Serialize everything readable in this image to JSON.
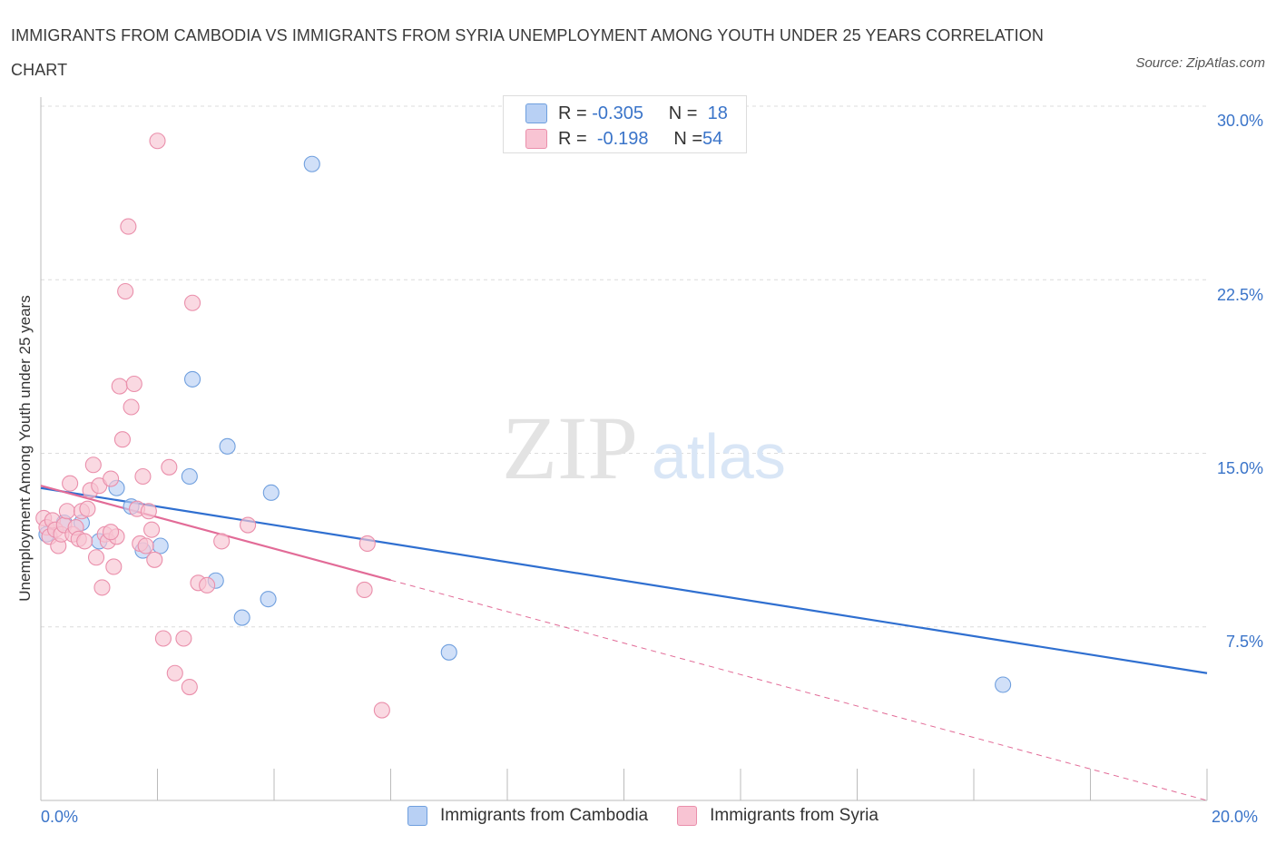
{
  "title": "IMMIGRANTS FROM CAMBODIA VS IMMIGRANTS FROM SYRIA UNEMPLOYMENT AMONG YOUTH UNDER 25 YEARS CORRELATION CHART",
  "source": "Source: ZipAtlas.com",
  "watermark": {
    "zip": "ZIP",
    "atlas": "atlas"
  },
  "colors": {
    "blue_fill": "#b8d0f4",
    "blue_stroke": "#6f9fde",
    "blue_line": "#2f6fd0",
    "pink_fill": "#f8c4d3",
    "pink_stroke": "#ea8fab",
    "pink_line": "#e26b97",
    "tick_text": "#3a74c9",
    "grid": "#dcdcdc"
  },
  "legend": {
    "rows": [
      {
        "r_label": "R =",
        "r_value": "-0.305",
        "n_label": "N =",
        "n_value": "18",
        "color": "blue"
      },
      {
        "r_label": "R =",
        "r_value": "-0.198",
        "n_label": "N =",
        "n_value": "54",
        "color": "pink"
      }
    ]
  },
  "bottom_legend": [
    "Immigrants from Cambodia",
    "Immigrants from Syria"
  ],
  "chart_data": {
    "type": "scatter",
    "title": "IMMIGRANTS FROM CAMBODIA VS IMMIGRANTS FROM SYRIA UNEMPLOYMENT AMONG YOUTH UNDER 25 YEARS CORRELATION CHART",
    "xlabel": "",
    "ylabel": "Unemployment Among Youth under 25 years",
    "xlim": [
      0,
      20
    ],
    "ylim": [
      0,
      30
    ],
    "x_tick_labels": [
      "0.0%",
      "20.0%"
    ],
    "y_ticks": [
      7.5,
      15.0,
      22.5,
      30.0
    ],
    "y_tick_labels": [
      "7.5%",
      "15.0%",
      "22.5%",
      "30.0%"
    ],
    "grid": true,
    "series": [
      {
        "name": "Immigrants from Cambodia",
        "color": "blue",
        "points": [
          [
            0.1,
            11.5
          ],
          [
            0.4,
            12.0
          ],
          [
            0.7,
            12.0
          ],
          [
            1.0,
            11.2
          ],
          [
            1.3,
            13.5
          ],
          [
            1.55,
            12.7
          ],
          [
            1.75,
            10.8
          ],
          [
            2.05,
            11.0
          ],
          [
            2.55,
            14.0
          ],
          [
            2.6,
            18.2
          ],
          [
            3.0,
            9.5
          ],
          [
            3.2,
            15.3
          ],
          [
            3.45,
            7.9
          ],
          [
            3.9,
            8.7
          ],
          [
            3.95,
            13.3
          ],
          [
            4.65,
            27.5
          ],
          [
            7.0,
            6.4
          ],
          [
            16.5,
            5.0
          ]
        ],
        "trend": {
          "x0": 0.0,
          "y0": 13.5,
          "x1": 20.0,
          "y1": 5.5,
          "solid_until": 20.0
        }
      },
      {
        "name": "Immigrants from Syria",
        "color": "pink",
        "points": [
          [
            0.05,
            12.2
          ],
          [
            0.1,
            11.8
          ],
          [
            0.15,
            11.4
          ],
          [
            0.2,
            12.1
          ],
          [
            0.25,
            11.7
          ],
          [
            0.3,
            11.0
          ],
          [
            0.35,
            11.5
          ],
          [
            0.4,
            11.9
          ],
          [
            0.45,
            12.5
          ],
          [
            0.5,
            13.7
          ],
          [
            0.55,
            11.5
          ],
          [
            0.6,
            11.8
          ],
          [
            0.65,
            11.3
          ],
          [
            0.7,
            12.5
          ],
          [
            0.75,
            11.2
          ],
          [
            0.8,
            12.6
          ],
          [
            0.85,
            13.4
          ],
          [
            0.9,
            14.5
          ],
          [
            0.95,
            10.5
          ],
          [
            1.0,
            13.6
          ],
          [
            1.05,
            9.2
          ],
          [
            1.1,
            11.5
          ],
          [
            1.15,
            11.2
          ],
          [
            1.2,
            13.9
          ],
          [
            1.25,
            10.1
          ],
          [
            1.3,
            11.4
          ],
          [
            1.35,
            17.9
          ],
          [
            1.4,
            15.6
          ],
          [
            1.45,
            22.0
          ],
          [
            1.5,
            24.8
          ],
          [
            1.55,
            17.0
          ],
          [
            1.6,
            18.0
          ],
          [
            1.65,
            12.6
          ],
          [
            1.7,
            11.1
          ],
          [
            1.75,
            14.0
          ],
          [
            1.8,
            11.0
          ],
          [
            1.85,
            12.5
          ],
          [
            1.9,
            11.7
          ],
          [
            1.95,
            10.4
          ],
          [
            2.0,
            28.5
          ],
          [
            2.1,
            7.0
          ],
          [
            2.2,
            14.4
          ],
          [
            2.3,
            5.5
          ],
          [
            2.45,
            7.0
          ],
          [
            2.55,
            4.9
          ],
          [
            2.6,
            21.5
          ],
          [
            2.7,
            9.4
          ],
          [
            2.85,
            9.3
          ],
          [
            3.1,
            11.2
          ],
          [
            3.55,
            11.9
          ],
          [
            5.55,
            9.1
          ],
          [
            5.6,
            11.1
          ],
          [
            5.85,
            3.9
          ],
          [
            1.2,
            11.6
          ]
        ],
        "trend": {
          "x0": 0.0,
          "y0": 13.6,
          "x1": 20.0,
          "y1": 0.0,
          "solid_until": 6.0
        }
      }
    ]
  }
}
